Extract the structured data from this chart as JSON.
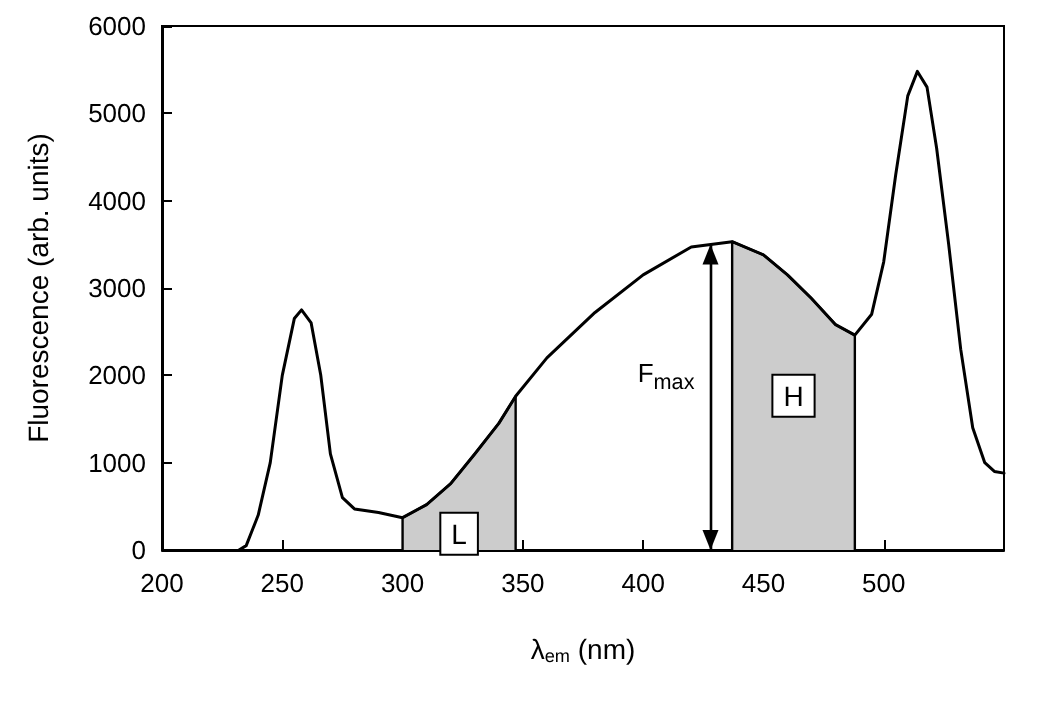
{
  "chart_data": {
    "type": "line",
    "xlabel": "λ$_{em}$ (nm)",
    "ylabel": "Fluorescence (arb. units)",
    "x": [
      232,
      235,
      240,
      245,
      250,
      255,
      258,
      262,
      266,
      270,
      275,
      280,
      290,
      300,
      310,
      320,
      330,
      340,
      347,
      360,
      380,
      400,
      420,
      437,
      450,
      460,
      470,
      480,
      488,
      495,
      500,
      505,
      510,
      514,
      518,
      522,
      527,
      532,
      537,
      542,
      546,
      550
    ],
    "series": [
      {
        "color": "#000000",
        "values": [
          0,
          50,
          400,
          1000,
          2000,
          2650,
          2750,
          2600,
          2000,
          1100,
          600,
          470,
          430,
          370,
          520,
          760,
          1100,
          1450,
          1760,
          2200,
          2720,
          3150,
          3470,
          3530,
          3380,
          3150,
          2880,
          2580,
          2460,
          2700,
          3300,
          4300,
          5200,
          5480,
          5300,
          4600,
          3500,
          2300,
          1400,
          1000,
          900,
          880
        ]
      },
      {
        "type": "area",
        "name": "L",
        "color": "#cccccc",
        "x": [
          300,
          300,
          310,
          320,
          330,
          340,
          347,
          347
        ],
        "values": [
          0,
          370,
          520,
          760,
          1100,
          1450,
          1760,
          0
        ]
      },
      {
        "type": "area",
        "name": "H",
        "color": "#cccccc",
        "x": [
          437,
          437,
          450,
          460,
          470,
          480,
          488,
          488
        ],
        "values": [
          0,
          3530,
          3380,
          3150,
          2880,
          2580,
          2460,
          0
        ]
      }
    ],
    "xlim": [
      200,
      550
    ],
    "xticks": [
      200,
      250,
      300,
      350,
      400,
      450,
      500
    ],
    "ylim": [
      0,
      6000
    ],
    "yticks": [
      0,
      1000,
      2000,
      3000,
      4000,
      5000,
      6000
    ],
    "grid": false,
    "marker": "none",
    "line_style": "solid",
    "ref_lines": [
      {
        "axis": "x",
        "value": 428,
        "label": "F$_{max}$",
        "color": "#000000"
      }
    ]
  }
}
